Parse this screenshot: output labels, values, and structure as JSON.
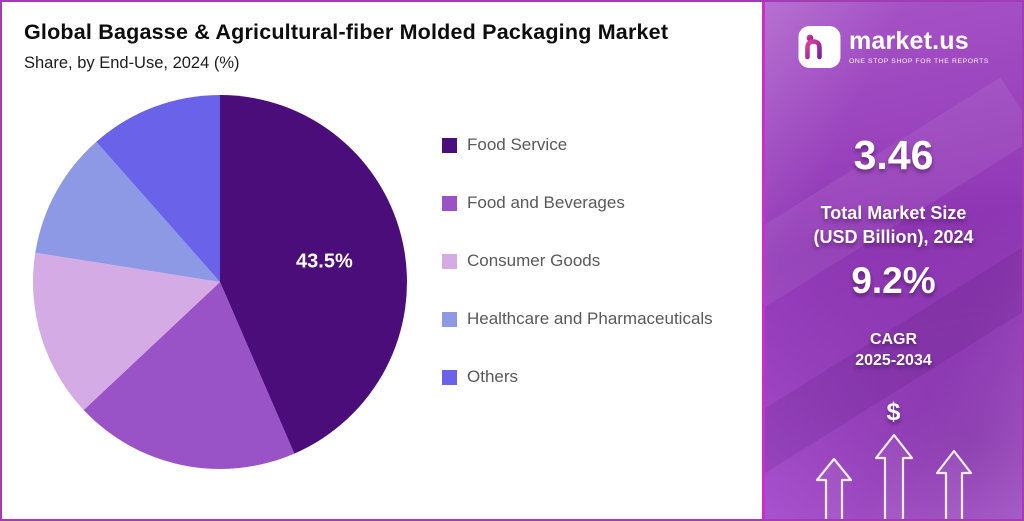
{
  "header": {
    "title": "Global Bagasse & Agricultural-fiber Molded Packaging Market",
    "subtitle": "Share, by End-Use, 2024 (%)"
  },
  "chart_data": {
    "type": "pie",
    "title": "Global Bagasse & Agricultural-fiber Molded Packaging Market Share, by End-Use, 2024 (%)",
    "labels": [
      "Food Service",
      "Food and Beverages",
      "Consumer Goods",
      "Healthcare and Pharmaceuticals",
      "Others"
    ],
    "values": [
      43.5,
      19.5,
      14.5,
      11.0,
      11.5
    ],
    "colors": [
      "#4A0D7A",
      "#9A52C7",
      "#D4ABE4",
      "#8E99E6",
      "#6A62E8"
    ],
    "unit": "%",
    "start_angle": "top",
    "direction": "clockwise",
    "legend_position": "right",
    "data_labels": [
      {
        "slice": "Food Service",
        "text": "43.5%"
      }
    ]
  },
  "sidebar": {
    "logo": {
      "brand": "market.us",
      "tagline": "ONE STOP SHOP FOR THE REPORTS"
    },
    "stats": [
      {
        "value": "3.46",
        "label_lines": [
          "Total Market Size",
          "(USD Billion), 2024"
        ]
      },
      {
        "value": "9.2%",
        "label_lines": [
          "CAGR",
          "2025-2034"
        ]
      }
    ],
    "dollar_symbol": "$",
    "colors": {
      "divider": "#CB2FC9",
      "panel": "#9B3FBE"
    }
  }
}
